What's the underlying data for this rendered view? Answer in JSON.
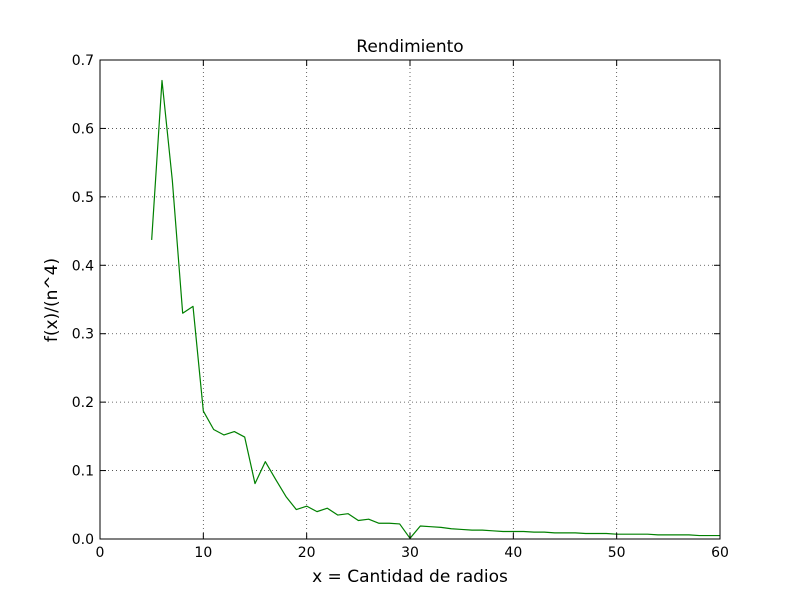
{
  "chart_data": {
    "type": "line",
    "title": "Rendimiento",
    "xlabel": "x = Cantidad de radios",
    "ylabel": "f(x)/(n^4)",
    "xlim": [
      0,
      60
    ],
    "ylim": [
      0,
      0.7
    ],
    "xticks": [
      0,
      10,
      20,
      30,
      40,
      50,
      60
    ],
    "yticks": [
      0.0,
      0.1,
      0.2,
      0.3,
      0.4,
      0.5,
      0.6,
      0.7
    ],
    "xtick_labels": [
      "0",
      "10",
      "20",
      "30",
      "40",
      "50",
      "60"
    ],
    "ytick_labels": [
      "0.0",
      "0.1",
      "0.2",
      "0.3",
      "0.4",
      "0.5",
      "0.6",
      "0.7"
    ],
    "grid": true,
    "series": [
      {
        "color": "#008000",
        "x": [
          5,
          6,
          7,
          8,
          9,
          10,
          11,
          12,
          13,
          14,
          15,
          16,
          17,
          18,
          19,
          20,
          21,
          22,
          23,
          24,
          25,
          26,
          27,
          28,
          29,
          30,
          31,
          32,
          33,
          34,
          35,
          36,
          37,
          38,
          39,
          40,
          41,
          42,
          43,
          44,
          45,
          46,
          47,
          48,
          49,
          50,
          51,
          52,
          53,
          54,
          55,
          56,
          57,
          58,
          59,
          60
        ],
        "y": [
          0.437,
          0.67,
          0.524,
          0.33,
          0.34,
          0.187,
          0.16,
          0.152,
          0.157,
          0.149,
          0.081,
          0.113,
          0.087,
          0.062,
          0.043,
          0.048,
          0.04,
          0.045,
          0.035,
          0.037,
          0.027,
          0.029,
          0.023,
          0.023,
          0.022,
          0.001,
          0.019,
          0.018,
          0.017,
          0.015,
          0.014,
          0.013,
          0.013,
          0.012,
          0.011,
          0.011,
          0.011,
          0.01,
          0.01,
          0.009,
          0.009,
          0.009,
          0.008,
          0.008,
          0.008,
          0.007,
          0.007,
          0.007,
          0.007,
          0.006,
          0.006,
          0.006,
          0.006,
          0.005,
          0.005,
          0.005
        ]
      }
    ]
  }
}
